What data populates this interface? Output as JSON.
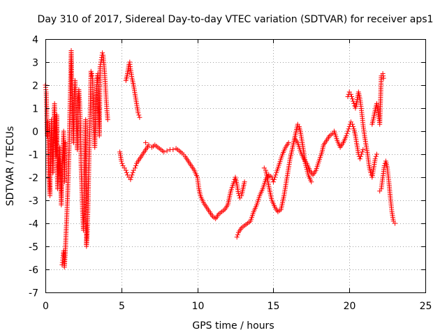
{
  "chart_data": {
    "type": "scatter",
    "title": "Day 310 of 2017, Sidereal Day-to-day VTEC variation (SDTVAR) for receiver aps1",
    "xlabel": "GPS time / hours",
    "ylabel": "SDTVAR / TECUs",
    "xlim": [
      0,
      25
    ],
    "ylim": [
      -7,
      4
    ],
    "xticks": [
      0,
      5,
      10,
      15,
      20,
      25
    ],
    "yticks": [
      -7,
      -6,
      -5,
      -4,
      -3,
      -2,
      -1,
      0,
      1,
      2,
      3,
      4
    ],
    "grid": true,
    "marker": "plus",
    "color": "#ff0000",
    "series": [
      {
        "name": "aps1",
        "points": [
          [
            0.0,
            2.0
          ],
          [
            0.05,
            1.7
          ],
          [
            0.08,
            1.0
          ],
          [
            0.1,
            0.3
          ],
          [
            0.12,
            -0.2
          ],
          [
            0.15,
            0.4
          ],
          [
            0.18,
            -0.8
          ],
          [
            0.2,
            -1.5
          ],
          [
            0.25,
            -2.2
          ],
          [
            0.3,
            -2.8
          ],
          [
            0.35,
            -1.0
          ],
          [
            0.4,
            0.5
          ],
          [
            0.45,
            -0.5
          ],
          [
            0.5,
            -1.8
          ],
          [
            0.55,
            0.2
          ],
          [
            0.6,
            1.2
          ],
          [
            0.65,
            -0.3
          ],
          [
            0.7,
            -1.1
          ],
          [
            0.75,
            0.7
          ],
          [
            0.8,
            -2.5
          ],
          [
            0.85,
            -1.2
          ],
          [
            0.9,
            -1.8
          ],
          [
            0.95,
            -0.7
          ],
          [
            1.0,
            -2.0
          ],
          [
            1.05,
            -3.2
          ],
          [
            1.1,
            -1.5
          ],
          [
            1.15,
            -1.0
          ],
          [
            1.2,
            0.0
          ],
          [
            1.25,
            -2.2
          ],
          [
            1.3,
            -0.5
          ],
          [
            1.1,
            -5.8
          ],
          [
            1.15,
            -5.5
          ],
          [
            1.2,
            -5.2
          ],
          [
            1.25,
            -5.9
          ],
          [
            1.3,
            -5.4
          ],
          [
            1.4,
            -3.8
          ],
          [
            1.45,
            -3.0
          ],
          [
            1.5,
            -2.0
          ],
          [
            1.55,
            -1.0
          ],
          [
            1.6,
            0.5
          ],
          [
            1.65,
            2.0
          ],
          [
            1.7,
            3.5
          ],
          [
            1.72,
            2.6
          ],
          [
            1.75,
            1.8
          ],
          [
            1.8,
            0.6
          ],
          [
            1.85,
            -0.5
          ],
          [
            1.9,
            1.5
          ],
          [
            1.95,
            2.2
          ],
          [
            2.0,
            1.2
          ],
          [
            2.05,
            0.2
          ],
          [
            2.1,
            -0.8
          ],
          [
            2.15,
            1.1
          ],
          [
            2.2,
            1.8
          ],
          [
            2.25,
            1.3
          ],
          [
            2.3,
            0.4
          ],
          [
            2.35,
            -1.5
          ],
          [
            2.4,
            -2.5
          ],
          [
            2.45,
            -3.5
          ],
          [
            2.5,
            -4.3
          ],
          [
            2.55,
            -2.8
          ],
          [
            2.6,
            -1.2
          ],
          [
            2.65,
            0.5
          ],
          [
            2.7,
            -5.0
          ],
          [
            2.75,
            -4.5
          ],
          [
            2.8,
            -3.3
          ],
          [
            2.85,
            -1.8
          ],
          [
            2.9,
            -0.4
          ],
          [
            2.95,
            0.8
          ],
          [
            3.0,
            2.6
          ],
          [
            3.05,
            2.5
          ],
          [
            3.1,
            2.3
          ],
          [
            3.15,
            1.4
          ],
          [
            3.2,
            0.2
          ],
          [
            3.25,
            -0.7
          ],
          [
            3.3,
            0.5
          ],
          [
            3.35,
            1.6
          ],
          [
            3.4,
            2.2
          ],
          [
            3.45,
            2.5
          ],
          [
            3.5,
            1.0
          ],
          [
            3.55,
            -0.2
          ],
          [
            3.6,
            2.8
          ],
          [
            3.65,
            3.0
          ],
          [
            3.7,
            3.2
          ],
          [
            3.75,
            3.4
          ],
          [
            3.8,
            3.3
          ],
          [
            3.85,
            2.9
          ],
          [
            3.9,
            2.5
          ],
          [
            3.95,
            2.0
          ],
          [
            4.0,
            1.4
          ],
          [
            4.05,
            0.9
          ],
          [
            4.1,
            0.5
          ],
          [
            4.9,
            -0.9
          ],
          [
            5.0,
            -1.3
          ],
          [
            5.1,
            -1.5
          ],
          [
            5.2,
            -1.6
          ],
          [
            5.3,
            -1.7
          ],
          [
            5.4,
            -1.9
          ],
          [
            5.5,
            -2.0
          ],
          [
            5.6,
            -2.1
          ],
          [
            5.7,
            -1.9
          ],
          [
            5.8,
            -1.7
          ],
          [
            5.3,
            2.2
          ],
          [
            5.4,
            2.5
          ],
          [
            5.5,
            2.9
          ],
          [
            5.55,
            3.0
          ],
          [
            5.6,
            2.7
          ],
          [
            5.7,
            2.3
          ],
          [
            5.8,
            2.0
          ],
          [
            5.9,
            1.6
          ],
          [
            6.0,
            1.2
          ],
          [
            6.1,
            0.8
          ],
          [
            6.2,
            0.6
          ],
          [
            5.9,
            -1.6
          ],
          [
            6.0,
            -1.4
          ],
          [
            6.2,
            -1.2
          ],
          [
            6.4,
            -1.0
          ],
          [
            6.6,
            -0.8
          ],
          [
            6.8,
            -0.6
          ],
          [
            6.6,
            -0.5
          ],
          [
            7.0,
            -0.7
          ],
          [
            7.2,
            -0.6
          ],
          [
            7.4,
            -0.7
          ],
          [
            7.6,
            -0.8
          ],
          [
            7.8,
            -0.9
          ],
          [
            8.0,
            -0.85
          ],
          [
            8.2,
            -0.8
          ],
          [
            8.4,
            -0.8
          ],
          [
            8.6,
            -0.75
          ],
          [
            8.8,
            -0.85
          ],
          [
            9.0,
            -0.95
          ],
          [
            9.2,
            -1.1
          ],
          [
            9.4,
            -1.3
          ],
          [
            9.6,
            -1.5
          ],
          [
            9.8,
            -1.7
          ],
          [
            10.0,
            -2.0
          ],
          [
            10.1,
            -2.5
          ],
          [
            10.2,
            -2.8
          ],
          [
            10.4,
            -3.1
          ],
          [
            10.6,
            -3.3
          ],
          [
            10.8,
            -3.5
          ],
          [
            11.0,
            -3.7
          ],
          [
            11.2,
            -3.8
          ],
          [
            11.4,
            -3.6
          ],
          [
            11.6,
            -3.5
          ],
          [
            11.8,
            -3.4
          ],
          [
            12.0,
            -3.2
          ],
          [
            12.1,
            -2.9
          ],
          [
            12.2,
            -2.6
          ],
          [
            12.4,
            -2.2
          ],
          [
            12.5,
            -2.0
          ],
          [
            12.6,
            -2.3
          ],
          [
            12.7,
            -2.7
          ],
          [
            12.8,
            -2.9
          ],
          [
            12.9,
            -2.8
          ],
          [
            13.0,
            -2.5
          ],
          [
            13.1,
            -2.2
          ],
          [
            12.6,
            -4.6
          ],
          [
            12.7,
            -4.4
          ],
          [
            12.9,
            -4.2
          ],
          [
            13.1,
            -4.1
          ],
          [
            13.3,
            -4.0
          ],
          [
            13.5,
            -3.9
          ],
          [
            13.7,
            -3.5
          ],
          [
            13.9,
            -3.2
          ],
          [
            14.1,
            -2.8
          ],
          [
            14.3,
            -2.5
          ],
          [
            14.5,
            -2.1
          ],
          [
            14.7,
            -1.9
          ],
          [
            14.9,
            -2.0
          ],
          [
            15.0,
            -2.2
          ],
          [
            15.1,
            -2.0
          ],
          [
            15.2,
            -1.8
          ],
          [
            15.4,
            -1.4
          ],
          [
            15.6,
            -1.0
          ],
          [
            15.8,
            -0.7
          ],
          [
            16.0,
            -0.5
          ],
          [
            14.4,
            -1.6
          ],
          [
            14.5,
            -1.7
          ],
          [
            14.7,
            -2.4
          ],
          [
            14.9,
            -3.0
          ],
          [
            15.1,
            -3.3
          ],
          [
            15.3,
            -3.5
          ],
          [
            15.5,
            -3.4
          ],
          [
            15.7,
            -2.8
          ],
          [
            15.9,
            -2.0
          ],
          [
            16.1,
            -1.2
          ],
          [
            16.3,
            -0.6
          ],
          [
            16.5,
            0.0
          ],
          [
            16.6,
            0.3
          ],
          [
            16.7,
            0.2
          ],
          [
            16.8,
            -0.1
          ],
          [
            16.9,
            -0.5
          ],
          [
            17.0,
            -0.9
          ],
          [
            17.1,
            -1.4
          ],
          [
            17.3,
            -1.9
          ],
          [
            17.5,
            -2.2
          ],
          [
            16.4,
            -0.3
          ],
          [
            16.6,
            -0.5
          ],
          [
            16.8,
            -0.9
          ],
          [
            17.0,
            -1.2
          ],
          [
            17.2,
            -1.4
          ],
          [
            17.4,
            -1.7
          ],
          [
            17.6,
            -1.9
          ],
          [
            17.8,
            -1.7
          ],
          [
            18.0,
            -1.3
          ],
          [
            18.2,
            -0.9
          ],
          [
            18.3,
            -0.6
          ],
          [
            18.5,
            -0.4
          ],
          [
            18.7,
            -0.2
          ],
          [
            18.9,
            -0.1
          ],
          [
            19.0,
            0.0
          ],
          [
            19.2,
            -0.4
          ],
          [
            19.4,
            -0.7
          ],
          [
            19.6,
            -0.5
          ],
          [
            19.8,
            -0.2
          ],
          [
            19.9,
            0.0
          ],
          [
            20.0,
            0.2
          ],
          [
            20.1,
            0.4
          ],
          [
            20.2,
            0.3
          ],
          [
            20.3,
            0.1
          ],
          [
            20.4,
            -0.2
          ],
          [
            20.5,
            -0.6
          ],
          [
            20.6,
            -1.0
          ],
          [
            20.7,
            -1.2
          ],
          [
            20.8,
            -1.0
          ],
          [
            20.9,
            -0.8
          ],
          [
            19.9,
            1.5
          ],
          [
            20.0,
            1.7
          ],
          [
            20.1,
            1.6
          ],
          [
            20.2,
            1.4
          ],
          [
            20.3,
            1.2
          ],
          [
            20.4,
            1.0
          ],
          [
            20.5,
            1.3
          ],
          [
            20.6,
            1.7
          ],
          [
            20.7,
            1.4
          ],
          [
            20.8,
            0.9
          ],
          [
            20.9,
            0.3
          ],
          [
            21.0,
            -0.2
          ],
          [
            21.1,
            -0.6
          ],
          [
            21.2,
            -1.0
          ],
          [
            21.3,
            -1.5
          ],
          [
            21.4,
            -1.8
          ],
          [
            21.5,
            -2.0
          ],
          [
            21.6,
            -1.6
          ],
          [
            21.7,
            -1.2
          ],
          [
            21.8,
            -1.0
          ],
          [
            21.5,
            0.3
          ],
          [
            21.6,
            0.6
          ],
          [
            21.7,
            0.9
          ],
          [
            21.8,
            1.2
          ],
          [
            21.9,
            0.8
          ],
          [
            22.0,
            0.3
          ],
          [
            22.1,
            2.4
          ],
          [
            22.2,
            2.5
          ],
          [
            22.25,
            2.3
          ],
          [
            22.0,
            -2.6
          ],
          [
            22.1,
            -2.5
          ],
          [
            22.2,
            -2.0
          ],
          [
            22.3,
            -1.5
          ],
          [
            22.4,
            -1.3
          ],
          [
            22.5,
            -1.6
          ],
          [
            22.6,
            -2.2
          ],
          [
            22.7,
            -2.9
          ],
          [
            22.8,
            -3.5
          ],
          [
            22.9,
            -3.9
          ],
          [
            23.0,
            -4.0
          ]
        ]
      }
    ]
  }
}
